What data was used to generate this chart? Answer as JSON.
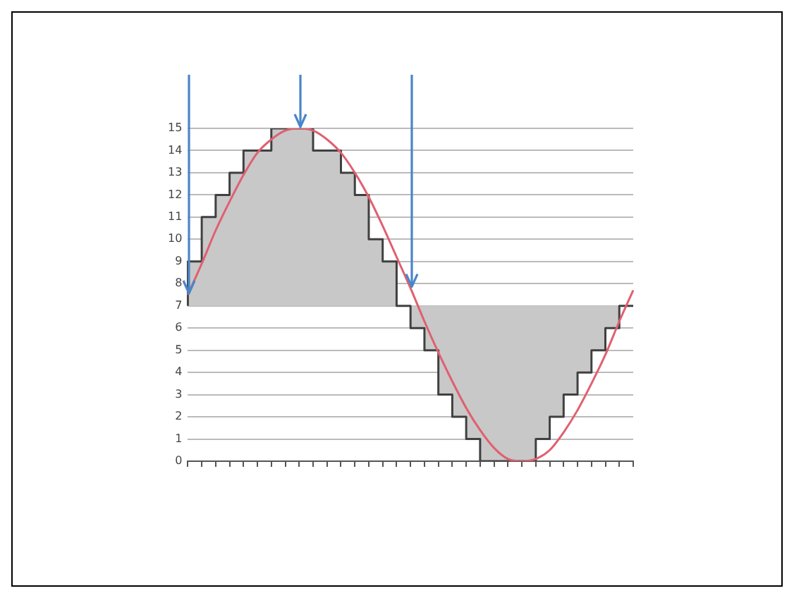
{
  "chart_data": {
    "type": "line",
    "categories": [
      null,
      null,
      null,
      null,
      null,
      null,
      null,
      null,
      null,
      null,
      null,
      null,
      null,
      null,
      null,
      null,
      null,
      null,
      null,
      null,
      null,
      null,
      null,
      null,
      null,
      null,
      null,
      null,
      null,
      null,
      null,
      null,
      null
    ],
    "series": [
      {
        "type": "step",
        "color": "#404040",
        "values": [
          7,
          9,
          11,
          12,
          13,
          14,
          14,
          15,
          15,
          15,
          14,
          14,
          13,
          12,
          10,
          9,
          7,
          6,
          5,
          3,
          2,
          1,
          0,
          0,
          0,
          0,
          1,
          2,
          3,
          4,
          5,
          6,
          7
        ]
      },
      {
        "type": "line",
        "color": "#e06070",
        "values": [
          7.5,
          8.9,
          10.4,
          11.7,
          12.9,
          13.9,
          14.5,
          14.9,
          15,
          14.9,
          14.5,
          13.9,
          13,
          11.9,
          10.6,
          9.2,
          7.8,
          6.3,
          4.9,
          3.6,
          2.4,
          1.4,
          0.6,
          0.1,
          0,
          0.1,
          0.5,
          1.3,
          2.3,
          3.5,
          4.8,
          6.3,
          7.7
        ]
      }
    ],
    "ylim": [
      0,
      15
    ],
    "yticks": [
      0,
      1,
      2,
      3,
      4,
      5,
      6,
      7,
      8,
      9,
      10,
      11,
      12,
      13,
      14,
      15
    ],
    "grid": "y",
    "marker": "none",
    "tick_labels": "y"
  }
}
